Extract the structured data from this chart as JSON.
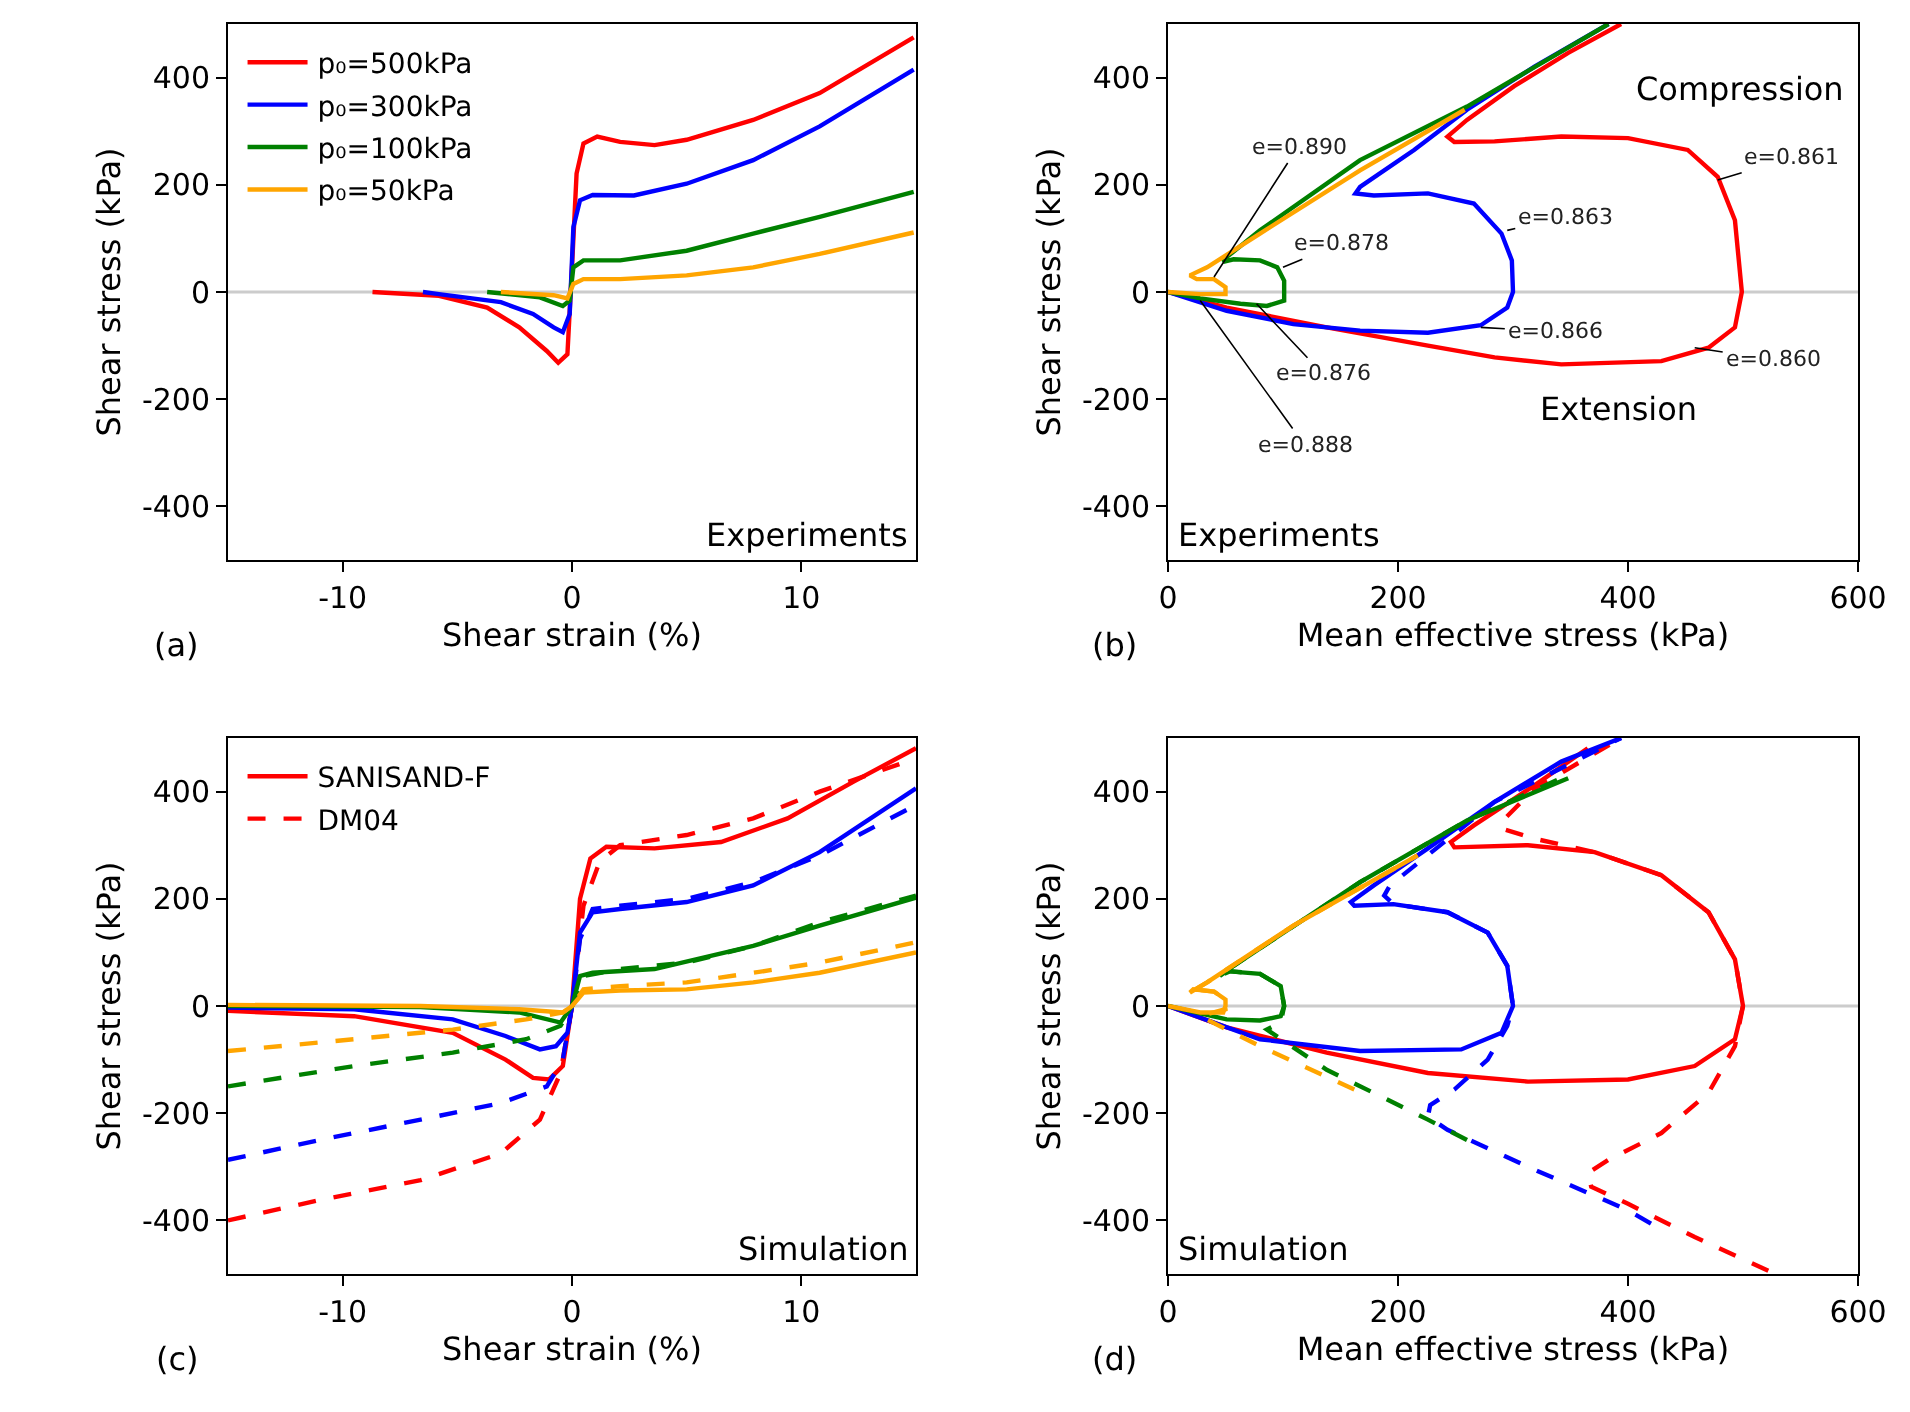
{
  "chart_data": [
    {
      "type": "line",
      "title": "(a)",
      "xlabel": "Shear strain (%)",
      "ylabel": "Shear stress (kPa)",
      "xlim": [
        -15,
        15
      ],
      "ylim": [
        -500,
        500
      ],
      "xticks": [
        -10,
        0,
        10
      ],
      "yticks": [
        -400,
        -200,
        0,
        200,
        400
      ],
      "grid": false,
      "legend": "top left",
      "line_style": "solid",
      "ref_lines": [
        {
          "axis": "y",
          "value": 0,
          "color": "#cccccc"
        }
      ],
      "annotations": [
        "Experiments"
      ],
      "series": [
        {
          "name": "p₀=500kPa",
          "color": "#ff0000",
          "x": [
            -8.7,
            -5.8,
            -3.7,
            -2.3,
            -1.1,
            -0.6,
            -0.2,
            0,
            0.2,
            0.5,
            1.1,
            2.1,
            3.6,
            5.0,
            7.9,
            10.8,
            14.9
          ],
          "values": [
            0,
            -7,
            -29,
            -66,
            -110,
            -132,
            -116,
            46,
            221,
            277,
            290,
            280,
            274,
            284,
            321,
            371,
            475
          ]
        },
        {
          "name": "p₀=300kPa",
          "color": "#0000ff",
          "x": [
            -6.5,
            -5.8,
            -3.1,
            -1.7,
            -0.8,
            -0.4,
            -0.1,
            0.06,
            0.35,
            0.9,
            2.7,
            5.0,
            7.9,
            10.8,
            14.9
          ],
          "values": [
            0,
            -4,
            -19,
            -41,
            -66,
            -75,
            -41,
            121,
            171,
            181,
            180,
            202,
            246,
            309,
            415
          ]
        },
        {
          "name": "p₀=100kPa",
          "color": "#008000",
          "x": [
            -3.7,
            -1.4,
            -0.4,
            -0.1,
            0.06,
            0.5,
            2.1,
            5.0,
            7.9,
            10.8,
            14.9
          ],
          "values": [
            0,
            -10,
            -26,
            -16,
            46,
            59,
            59,
            77,
            109,
            140,
            187
          ]
        },
        {
          "name": "p₀=50kPa",
          "color": "#ffa500",
          "x": [
            -3.1,
            -0.8,
            -0.2,
            0.06,
            0.5,
            2.1,
            5.0,
            7.9,
            10.8,
            14.9
          ],
          "values": [
            0,
            -6,
            -12,
            15,
            24,
            24,
            31,
            46,
            71,
            111
          ]
        }
      ]
    },
    {
      "type": "line",
      "title": "(b)",
      "xlabel": "Mean effective stress (kPa)",
      "ylabel": "Shear stress (kPa)",
      "xlim": [
        0,
        600
      ],
      "ylim": [
        -500,
        500
      ],
      "xticks": [
        0,
        200,
        400,
        600
      ],
      "yticks": [
        -400,
        -200,
        0,
        200,
        400
      ],
      "grid": false,
      "line_style": "solid",
      "ref_lines": [
        {
          "axis": "y",
          "value": 0,
          "color": "#cccccc"
        }
      ],
      "annotations": [
        "Compression",
        "Extension",
        "Experiments",
        {
          "text": "e=0.890",
          "x": 40,
          "y": 28
        },
        {
          "text": "e=0.888",
          "x": 28,
          "y": -16
        },
        {
          "text": "e=0.878",
          "x": 100,
          "y": 46
        },
        {
          "text": "e=0.876",
          "x": 77,
          "y": -22
        },
        {
          "text": "e=0.863",
          "x": 295,
          "y": 115
        },
        {
          "text": "e=0.866",
          "x": 272,
          "y": -66
        },
        {
          "text": "e=0.861",
          "x": 478,
          "y": 209
        },
        {
          "text": "e=0.860",
          "x": 458,
          "y": -104
        }
      ],
      "series": [
        {
          "color": "#ff0000",
          "x": [
            0,
            51,
            138,
            226,
            284,
            342,
            429,
            470,
            493,
            499,
            493,
            478,
            452,
            400,
            342,
            284,
            249,
            243,
            260,
            301,
            348,
            394
          ],
          "values": [
            0,
            -29,
            -66,
            -100,
            -122,
            -135,
            -129,
            -104,
            -66,
            0,
            134,
            215,
            265,
            287,
            290,
            281,
            280,
            290,
            321,
            384,
            446,
            500
          ]
        },
        {
          "color": "#0000ff",
          "x": [
            0,
            51,
            109,
            167,
            226,
            272,
            295,
            300,
            299,
            290,
            266,
            226,
            179,
            163,
            167,
            214,
            260,
            319,
            383
          ],
          "values": [
            0,
            -35,
            -60,
            -72,
            -76,
            -62,
            -29,
            0,
            59,
            109,
            165,
            184,
            180,
            184,
            196,
            265,
            340,
            421,
            500
          ]
        },
        {
          "color": "#008000",
          "x": [
            0,
            28,
            63,
            86,
            101,
            101,
            95,
            80,
            57,
            48,
            51,
            80,
            167,
            260,
            383
          ],
          "values": [
            0,
            -12,
            -22,
            -26,
            -16,
            21,
            46,
            59,
            61,
            56,
            65,
            115,
            246,
            346,
            500
          ]
        },
        {
          "color": "#ffa500",
          "x": [
            0,
            28,
            50,
            50,
            40,
            25,
            19,
            34,
            80,
            167,
            258
          ],
          "values": [
            0,
            -4,
            -4,
            9,
            24,
            24,
            31,
            46,
            109,
            227,
            340
          ]
        }
      ]
    },
    {
      "type": "line",
      "title": "(c)",
      "xlabel": "Shear strain (%)",
      "ylabel": "Shear stress (kPa)",
      "xlim": [
        -15,
        15
      ],
      "ylim": [
        -500,
        500
      ],
      "xticks": [
        -10,
        0,
        10
      ],
      "yticks": [
        -400,
        -200,
        0,
        200,
        400
      ],
      "grid": false,
      "legend": "top left",
      "ref_lines": [
        {
          "axis": "y",
          "value": 0,
          "color": "#cccccc"
        }
      ],
      "annotations": [
        "Simulation"
      ],
      "series": [
        {
          "name": "SANISAND-F",
          "line_style": "solid",
          "color": "#ff0000",
          "x": [
            -15,
            -9.5,
            -5.2,
            -2.9,
            -1.7,
            -1.0,
            -0.4,
            0,
            0.35,
            0.8,
            1.5,
            3.6,
            6.5,
            9.4,
            12.3,
            15
          ],
          "values": [
            -9,
            -19,
            -50,
            -100,
            -134,
            -137,
            -112,
            0,
            200,
            275,
            297,
            294,
            306,
            350,
            419,
            481
          ]
        },
        {
          "name": "DM04",
          "line_style": "dashed",
          "color": "#ff0000",
          "x": [
            -15,
            -11,
            -6.6,
            -3.1,
            -1.4,
            -0.5,
            0,
            0.5,
            1.2,
            2.1,
            5.0,
            7.9,
            10.8,
            15
          ],
          "values": [
            -400,
            -362,
            -325,
            -275,
            -212,
            -125,
            0,
            187,
            269,
            300,
            319,
            350,
            400,
            462
          ]
        },
        {
          "line_style": "solid",
          "color": "#0000ff",
          "x": [
            -15,
            -9.5,
            -5.2,
            -2.9,
            -1.4,
            -0.7,
            -0.2,
            0,
            0.35,
            0.9,
            2.1,
            5.0,
            7.9,
            10.8,
            15
          ],
          "values": [
            -3,
            -6,
            -25,
            -56,
            -81,
            -75,
            -50,
            0,
            137,
            175,
            181,
            194,
            225,
            287,
            406
          ]
        },
        {
          "line_style": "dashed",
          "color": "#0000ff",
          "x": [
            -15,
            -11,
            -6.6,
            -3.1,
            -1.1,
            -0.4,
            0,
            0.35,
            0.9,
            2.1,
            5.0,
            7.9,
            10.8,
            15
          ],
          "values": [
            -287,
            -250,
            -212,
            -181,
            -150,
            -100,
            0,
            125,
            181,
            187,
            200,
            231,
            281,
            375
          ]
        },
        {
          "line_style": "solid",
          "color": "#008000",
          "x": [
            -15,
            -6.6,
            -2.3,
            -0.5,
            0,
            0.35,
            0.9,
            3.6,
            7.9,
            10.8,
            15
          ],
          "values": [
            0,
            -2,
            -12,
            -31,
            0,
            56,
            62,
            69,
            112,
            150,
            202
          ]
        },
        {
          "line_style": "dashed",
          "color": "#008000",
          "x": [
            -15,
            -9.5,
            -5.2,
            -2.0,
            -0.5,
            0,
            0.5,
            2.1,
            5.0,
            7.9,
            10.8,
            15
          ],
          "values": [
            -150,
            -112,
            -87,
            -62,
            -37,
            0,
            56,
            69,
            81,
            112,
            156,
            206
          ]
        },
        {
          "line_style": "solid",
          "color": "#ffa500",
          "x": [
            -15,
            -6.6,
            -2.3,
            -0.4,
            0,
            0.5,
            2.1,
            5.0,
            7.9,
            10.8,
            15
          ],
          "values": [
            2,
            0,
            -6,
            -12,
            0,
            25,
            29,
            31,
            44,
            62,
            100
          ]
        },
        {
          "line_style": "dashed",
          "color": "#ffa500",
          "x": [
            -15,
            -9.5,
            -5.2,
            -2.0,
            -0.4,
            0,
            0.5,
            2.1,
            5.0,
            7.9,
            10.8,
            15
          ],
          "values": [
            -84,
            -62,
            -44,
            -25,
            -12,
            0,
            31,
            37,
            44,
            62,
            81,
            119
          ]
        }
      ]
    },
    {
      "type": "line",
      "title": "(d)",
      "xlabel": "Mean effective stress (kPa)",
      "ylabel": "Shear stress (kPa)",
      "xlim": [
        0,
        600
      ],
      "ylim": [
        -500,
        500
      ],
      "xticks": [
        0,
        200,
        400,
        600
      ],
      "yticks": [
        -400,
        -200,
        0,
        200,
        400
      ],
      "grid": false,
      "ref_lines": [
        {
          "axis": "y",
          "value": 0,
          "color": "#cccccc"
        }
      ],
      "annotations": [
        "Simulation"
      ],
      "series": [
        {
          "line_style": "solid",
          "color": "#ff0000",
          "x": [
            0,
            51,
            138,
            226,
            313,
            400,
            458,
            493,
            500,
            493,
            470,
            429,
            371,
            313,
            249,
            246,
            266,
            319,
            365
          ],
          "values": [
            0,
            -40,
            -87,
            -125,
            -141,
            -137,
            -112,
            -62,
            0,
            87,
            175,
            244,
            287,
            300,
            296,
            306,
            337,
            412,
            481
          ]
        },
        {
          "line_style": "dashed",
          "color": "#ff0000",
          "x": [
            522,
            458,
            400,
            368,
            365,
            383,
            429,
            470,
            493,
            500,
            493,
            470,
            429,
            371,
            319,
            290,
            293,
            319,
            394
          ],
          "values": [
            -494,
            -431,
            -369,
            -337,
            -312,
            -287,
            -237,
            -162,
            -75,
            0,
            87,
            175,
            244,
            287,
            312,
            331,
            350,
            406,
            500
          ]
        },
        {
          "line_style": "solid",
          "color": "#0000ff",
          "x": [
            0,
            80,
            167,
            255,
            290,
            300,
            295,
            278,
            243,
            196,
            162,
            159,
            179,
            226,
            284,
            342,
            394
          ],
          "values": [
            0,
            -62,
            -84,
            -81,
            -50,
            0,
            75,
            137,
            175,
            190,
            187,
            194,
            225,
            294,
            381,
            456,
            500
          ]
        },
        {
          "line_style": "dashed",
          "color": "#0000ff",
          "x": [
            420,
            400,
            313,
            243,
            226,
            228,
            249,
            278,
            295,
            300,
            295,
            278,
            243,
            196,
            188,
            193,
            284,
            394
          ],
          "values": [
            -406,
            -381,
            -300,
            -231,
            -206,
            -185,
            -156,
            -100,
            -37,
            0,
            75,
            137,
            175,
            190,
            206,
            225,
            381,
            500
          ]
        },
        {
          "line_style": "solid",
          "color": "#008000",
          "x": [
            0,
            51,
            80,
            98,
            101,
            98,
            80,
            51,
            45,
            57,
            167,
            260,
            348
          ],
          "values": [
            0,
            -25,
            -27,
            -19,
            0,
            37,
            60,
            65,
            56,
            75,
            231,
            346,
            425
          ]
        },
        {
          "line_style": "dashed",
          "color": "#008000",
          "x": [
            260,
            226,
            138,
            86,
            98,
            101,
            98,
            80,
            54,
            45,
            57,
            167,
            260,
            342
          ],
          "values": [
            -250,
            -212,
            -119,
            -44,
            -31,
            0,
            37,
            60,
            65,
            56,
            75,
            231,
            346,
            425
          ]
        },
        {
          "line_style": "solid",
          "color": "#ffa500",
          "x": [
            0,
            28,
            48,
            50,
            50,
            40,
            22,
            19,
            34,
            109,
            217
          ],
          "values": [
            0,
            -12,
            -12,
            0,
            12,
            27,
            31,
            25,
            44,
            150,
            281
          ]
        },
        {
          "line_style": "dashed",
          "color": "#ffa500",
          "x": [
            162,
            80,
            28,
            50,
            50,
            40,
            22,
            19,
            34,
            109,
            217
          ],
          "values": [
            -156,
            -75,
            -19,
            -6,
            12,
            27,
            31,
            25,
            44,
            150,
            281
          ]
        }
      ]
    }
  ]
}
